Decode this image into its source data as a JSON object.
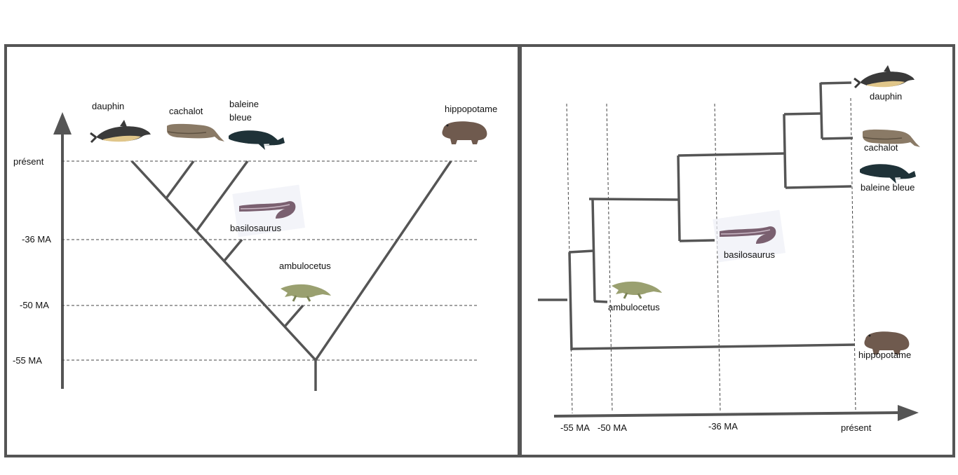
{
  "left_panel": {
    "time_labels": [
      "présent",
      "-36 MA",
      "-50 MA",
      "-55 MA"
    ],
    "taxa": {
      "dauphin": "dauphin",
      "cachalot": "cachalot",
      "baleine_line1": "baleine",
      "baleine_line2": "bleue",
      "hippopotame": "hippopotame",
      "basilosaurus": "basilosaurus",
      "ambulocetus": "ambulocetus"
    }
  },
  "right_panel": {
    "time_labels": [
      "-55 MA",
      "-50 MA",
      "-36 MA",
      "présent"
    ],
    "taxa": {
      "dauphin": "dauphin",
      "cachalot": "cachalot",
      "baleine_bleue": "baleine bleue",
      "basilosaurus": "basilosaurus",
      "ambulocetus": "ambulocetus",
      "hippopotame": "hippopotame"
    }
  },
  "colors": {
    "frame": "#555555",
    "dolphin_back": "#3a3a3a",
    "dolphin_belly": "#e0c68a",
    "sperm_whale": "#8a7a66",
    "blue_whale": "#1f3238",
    "hippo": "#6f5a4e",
    "basilosaurus": "#7a6070",
    "ambulocetus": "#9aa070"
  }
}
